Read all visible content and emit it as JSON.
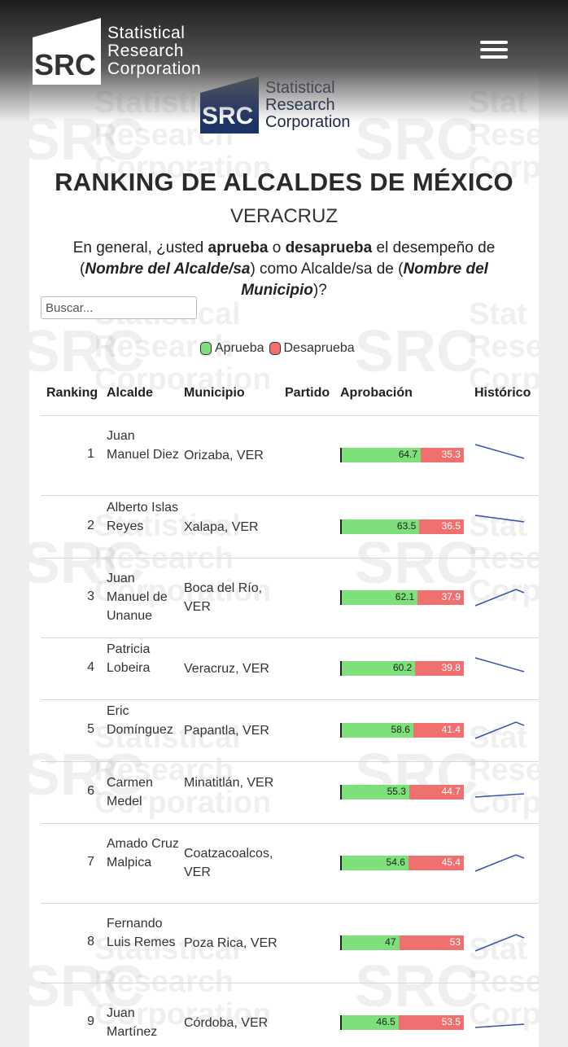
{
  "header": {
    "logo_abbr": "SRC",
    "logo_lines": [
      "Statistical",
      "Research",
      "Corporation"
    ],
    "menu_icon": "hamburger-menu-icon"
  },
  "page": {
    "title": "RANKING DE ALCALDES DE MÉXICO",
    "subtitle": "VERACRUZ",
    "question": {
      "p1": "En general, ¿usted ",
      "b1": "aprueba",
      "p2": " o ",
      "b2": "desaprueba",
      "p3": " el desempeño de (",
      "bi1": "Nombre del Alcalde/sa",
      "p4": ") como Alcalde/sa de (",
      "bi2": "Nombre del Municipio",
      "p5": ")?"
    },
    "search_placeholder": "Buscar..."
  },
  "legend": [
    {
      "label": "Aprueba",
      "color": "#7ee07a"
    },
    {
      "label": "Desaprueba",
      "color": "#f07070"
    }
  ],
  "table": {
    "headers": [
      "Ranking",
      "Alcalde",
      "Municipio",
      "Partido",
      "Aprobación",
      "Histórico"
    ],
    "rows": [
      {
        "rank": "1",
        "name": "Juan Manuel Diez",
        "municipio": "Orizaba, VER",
        "partido": "",
        "aprueba": 64.7,
        "desaprueba": 35.3,
        "trend": "down"
      },
      {
        "rank": "2",
        "name": "Alberto Islas Reyes",
        "municipio": "Xalapa, VER",
        "partido": "",
        "aprueba": 63.5,
        "desaprueba": 36.5,
        "trend": "flat-down"
      },
      {
        "rank": "3",
        "name": "Juan Manuel de Unanue",
        "municipio": "Boca del Río, VER",
        "partido": "",
        "aprueba": 62.1,
        "desaprueba": 37.9,
        "trend": "up"
      },
      {
        "rank": "4",
        "name": "Patricia Lobeira",
        "municipio": "Veracruz, VER",
        "partido": "",
        "aprueba": 60.2,
        "desaprueba": 39.8,
        "trend": "down"
      },
      {
        "rank": "5",
        "name": "Eric Domínguez",
        "municipio": "Papantla, VER",
        "partido": "",
        "aprueba": 58.6,
        "desaprueba": 41.4,
        "trend": "up"
      },
      {
        "rank": "6",
        "name": "Carmen Medel",
        "municipio": "Minatitlán, VER",
        "partido": "",
        "aprueba": 55.3,
        "desaprueba": 44.7,
        "trend": "flat-up"
      },
      {
        "rank": "7",
        "name": "Amado Cruz Malpica",
        "municipio": "Coatzacoalcos, VER",
        "partido": "",
        "aprueba": 54.6,
        "desaprueba": 45.4,
        "trend": "up"
      },
      {
        "rank": "8",
        "name": "Fernando Luis Remes",
        "municipio": "Poza Rica, VER",
        "partido": "",
        "aprueba": 47,
        "desaprueba": 53,
        "trend": "up"
      },
      {
        "rank": "9",
        "name": "Juan Martínez",
        "municipio": "Córdoba, VER",
        "partido": "",
        "aprueba": 46.5,
        "desaprueba": 53.5,
        "trend": "flat-up"
      }
    ]
  }
}
